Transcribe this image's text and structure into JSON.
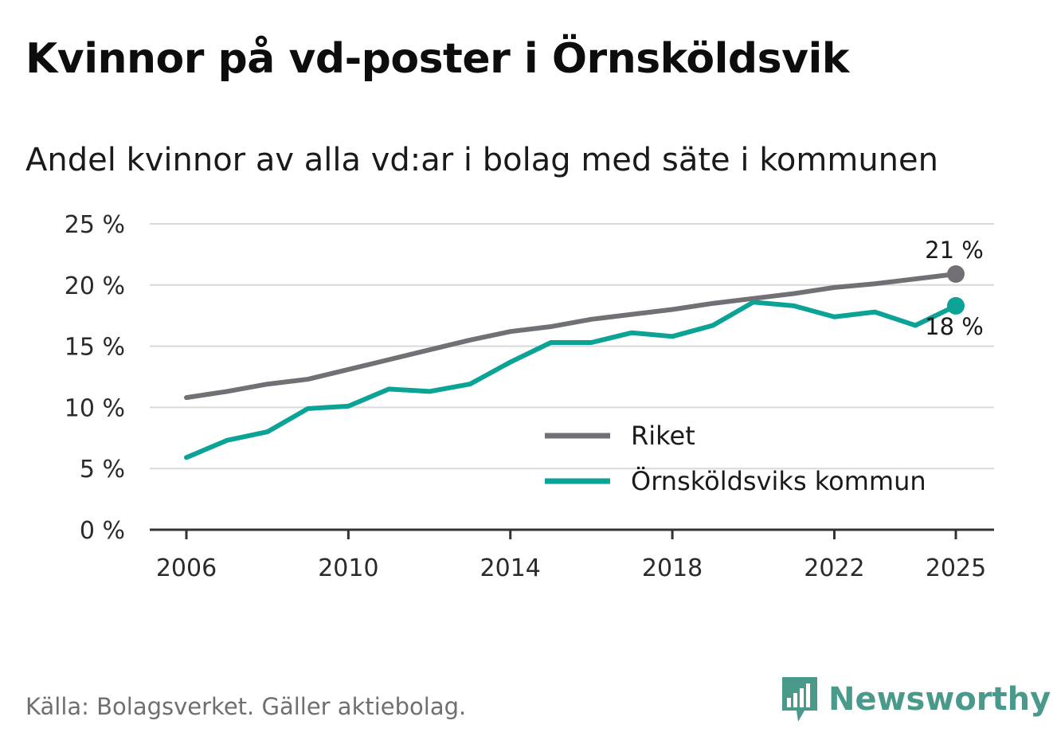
{
  "header": {
    "title": "Kvinnor på vd-poster i Örnsköldsvik",
    "subtitle": "Andel kvinnor av alla vd:ar i bolag med säte i kommunen"
  },
  "footer": {
    "source": "Källa: Bolagsverket. Gäller aktiebolag.",
    "brand": "Newsworthy"
  },
  "colors": {
    "riket": "#727075",
    "kommun": "#0aa396",
    "grid": "#d9d9d9",
    "axis": "#333333",
    "brand": "#4a9a8c"
  },
  "chart_data": {
    "type": "line",
    "title": "Andel kvinnor av alla vd:ar i bolag med säte i kommunen",
    "xlabel": "",
    "ylabel": "",
    "x": [
      2006,
      2007,
      2008,
      2009,
      2010,
      2011,
      2012,
      2013,
      2014,
      2015,
      2016,
      2017,
      2018,
      2019,
      2020,
      2021,
      2022,
      2023,
      2024,
      2025
    ],
    "xlim": [
      2006,
      2025
    ],
    "ylim": [
      0,
      25
    ],
    "x_ticks": [
      2006,
      2010,
      2014,
      2018,
      2022,
      2025
    ],
    "x_tick_labels": [
      "2006",
      "2010",
      "2014",
      "2018",
      "2022",
      "2025"
    ],
    "y_ticks": [
      0,
      5,
      10,
      15,
      20,
      25
    ],
    "y_tick_labels": [
      "0 %",
      "5 %",
      "10 %",
      "15 %",
      "20 %",
      "25 %"
    ],
    "grid": true,
    "legend_position": "bottom-right",
    "series": [
      {
        "name": "Riket",
        "color_key": "riket",
        "values": [
          10.8,
          11.3,
          11.9,
          12.3,
          13.1,
          13.9,
          14.7,
          15.5,
          16.2,
          16.6,
          17.2,
          17.6,
          18.0,
          18.5,
          18.9,
          19.3,
          19.8,
          20.1,
          20.5,
          20.9
        ],
        "end_label": "21 %",
        "end_label_side": "above"
      },
      {
        "name": "Örnsköldsviks kommun",
        "color_key": "kommun",
        "values": [
          5.9,
          7.3,
          8.0,
          9.9,
          10.1,
          11.5,
          11.3,
          11.9,
          13.7,
          15.3,
          15.3,
          16.1,
          15.8,
          16.7,
          18.6,
          18.3,
          17.4,
          17.8,
          16.7,
          18.3
        ],
        "end_label": "18 %",
        "end_label_side": "below"
      }
    ]
  }
}
